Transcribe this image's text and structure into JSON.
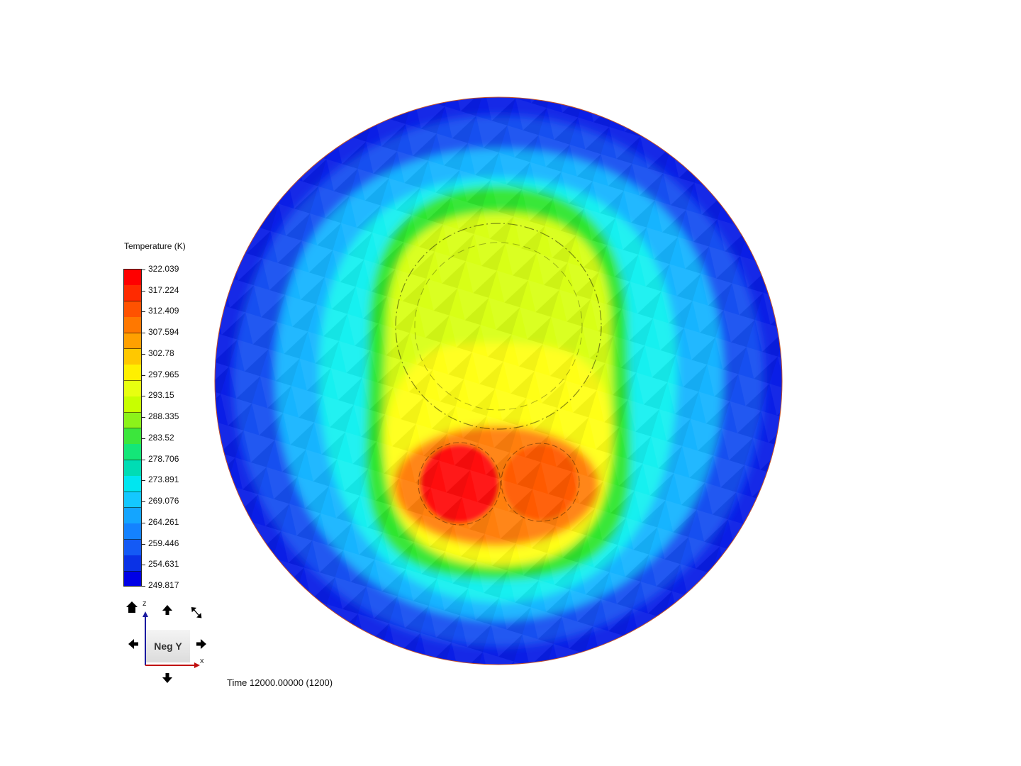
{
  "legend": {
    "title": "Temperature (K)",
    "ticks": [
      "322.039",
      "317.224",
      "312.409",
      "307.594",
      "302.78",
      "297.965",
      "293.15",
      "288.335",
      "283.52",
      "278.706",
      "273.891",
      "269.076",
      "264.261",
      "259.446",
      "254.631",
      "249.817"
    ],
    "bands": [
      "#ff0000",
      "#ff2a00",
      "#ff5200",
      "#ff7800",
      "#ffa000",
      "#ffc800",
      "#fff000",
      "#e8ff10",
      "#c8ff00",
      "#8cf21a",
      "#3ce63c",
      "#14e678",
      "#00dcb4",
      "#00e6f0",
      "#14c8ff",
      "#14a5ff",
      "#1482ff",
      "#145af5",
      "#0a32e6",
      "#0000e6"
    ]
  },
  "colors": {
    "c_red": "#ff0d0d",
    "c_orange": "#ff5a00",
    "c_orange2": "#ff7f0f",
    "c_yellow": "#ffff14",
    "c_yellowgreen": "#d8ff14",
    "c_green": "#2ee62e",
    "c_cyan": "#14f0f0",
    "c_lightblue": "#14b4ff",
    "c_blue": "#1450f0",
    "c_darkblue": "#0a1ee6"
  },
  "view": {
    "label": "Neg Y",
    "axis_z": "z",
    "axis_x": "x",
    "icons": [
      "home-icon",
      "arrow-up-icon",
      "rotate-icon",
      "arrow-left-icon",
      "arrow-right-icon",
      "arrow-down-icon"
    ]
  },
  "time": "Time 12000.00000 (1200)"
}
